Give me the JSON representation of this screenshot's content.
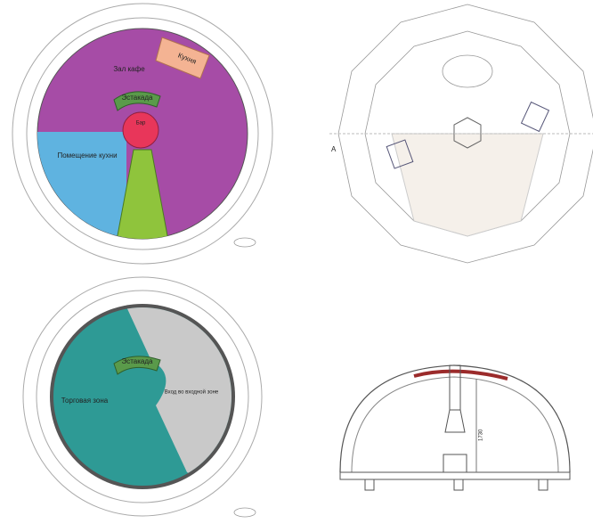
{
  "plan_1": {
    "hall": "Зал кафе",
    "kitchen": "Кухня",
    "stage": "Эстакада",
    "bar": "Бар",
    "kitchen_room": "Помещение кухни"
  },
  "plan_2": {
    "marker": "A"
  },
  "plan_3": {
    "stage": "Эстакада",
    "trade_zone": "Торговая зона",
    "entrance": "Вход во входной зоне"
  },
  "section": {
    "height": "1730"
  }
}
